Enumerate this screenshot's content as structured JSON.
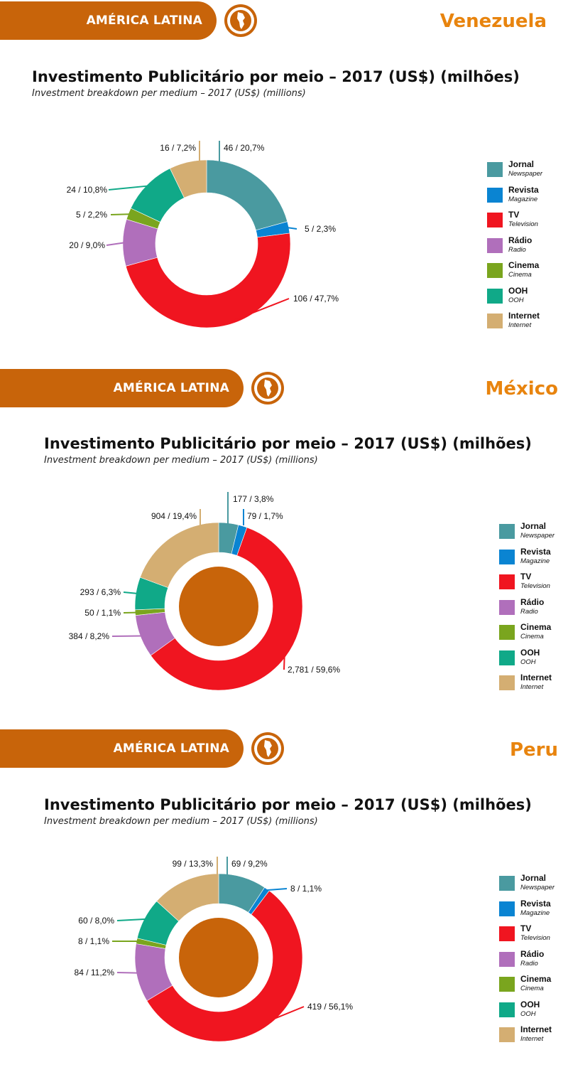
{
  "banner_label": "AMÉRICA LATINA",
  "colors": {
    "banner": "#c8640a",
    "country_text": "#e8840e",
    "center_fill": "#c8640a"
  },
  "legend": [
    {
      "key": "jornal",
      "name": "Jornal",
      "sub": "Newspaper",
      "color": "#4a9aa0"
    },
    {
      "key": "revista",
      "name": "Revista",
      "sub": "Magazine",
      "color": "#0a84d2"
    },
    {
      "key": "tv",
      "name": "TV",
      "sub": "Television",
      "color": "#f01520"
    },
    {
      "key": "radio",
      "name": "Rádio",
      "sub": "Radio",
      "color": "#b06fbb"
    },
    {
      "key": "cinema",
      "name": "Cinema",
      "sub": "Cinema",
      "color": "#7aa51e"
    },
    {
      "key": "ooh",
      "name": "OOH",
      "sub": "OOH",
      "color": "#10a988"
    },
    {
      "key": "internet",
      "name": "Internet",
      "sub": "Internet",
      "color": "#d4ae72"
    }
  ],
  "sections": [
    {
      "country": "Venezuela",
      "title": "Investimento Publicitário por meio – 2017 (US$) (milhões)",
      "subtitle": "Investment breakdown per medium – 2017 (US$) (millions)",
      "center_fill": false
    },
    {
      "country": "México",
      "title": "Investimento Publicitário por meio – 2017 (US$) (milhões)",
      "subtitle": "Investment breakdown per medium – 2017 (US$) (millions)",
      "center_fill": true
    },
    {
      "country": "Peru",
      "title": "Investimento Publicitário por meio – 2017 (US$) (milhões)",
      "subtitle": "Investment breakdown per medium – 2017 (US$) (millions)",
      "center_fill": true
    }
  ],
  "chart_data": [
    {
      "type": "pie",
      "title": "Investimento Publicitário por meio – 2017 (US$) (milhões)",
      "subtitle": "Investment breakdown per medium – 2017 (US$) (millions)",
      "country": "Venezuela",
      "categories": [
        "Jornal",
        "Revista",
        "TV",
        "Rádio",
        "Cinema",
        "OOH",
        "Internet"
      ],
      "values": [
        46,
        5,
        106,
        20,
        5,
        24,
        16
      ],
      "percents": [
        20.7,
        2.3,
        47.7,
        9.0,
        2.2,
        10.8,
        7.2
      ],
      "labels": [
        "46 / 20,7%",
        "5 / 2,3%",
        "106 / 47,7%",
        "20 / 9,0%",
        "5 / 2,2%",
        "24 / 10,8%",
        "16 / 7,2%"
      ],
      "legend_position": "right"
    },
    {
      "type": "pie",
      "title": "Investimento Publicitário por meio – 2017 (US$) (milhões)",
      "subtitle": "Investment breakdown per medium – 2017 (US$) (millions)",
      "country": "México",
      "categories": [
        "Jornal",
        "Revista",
        "TV",
        "Rádio",
        "Cinema",
        "OOH",
        "Internet"
      ],
      "values": [
        177,
        79,
        2781,
        384,
        50,
        293,
        904
      ],
      "percents": [
        3.8,
        1.7,
        59.6,
        8.2,
        1.1,
        6.3,
        19.4
      ],
      "labels": [
        "177 / 3,8%",
        "79 / 1,7%",
        "2,781 / 59,6%",
        "384 / 8,2%",
        "50 / 1,1%",
        "293 / 6,3%",
        "904 / 19,4%"
      ],
      "legend_position": "right"
    },
    {
      "type": "pie",
      "title": "Investimento Publicitário por meio – 2017 (US$) (milhões)",
      "subtitle": "Investment breakdown per medium – 2017 (US$) (millions)",
      "country": "Peru",
      "categories": [
        "Jornal",
        "Revista",
        "TV",
        "Rádio",
        "Cinema",
        "OOH",
        "Internet"
      ],
      "values": [
        69,
        8,
        419,
        84,
        8,
        60,
        99
      ],
      "percents": [
        9.2,
        1.1,
        56.1,
        11.2,
        1.1,
        8.0,
        13.3
      ],
      "labels": [
        "69 / 9,2%",
        "8 / 1,1%",
        "419 / 56,1%",
        "84 / 11,2%",
        "8 / 1,1%",
        "60 / 8,0%",
        "99 / 13,3%"
      ],
      "legend_position": "right"
    }
  ]
}
